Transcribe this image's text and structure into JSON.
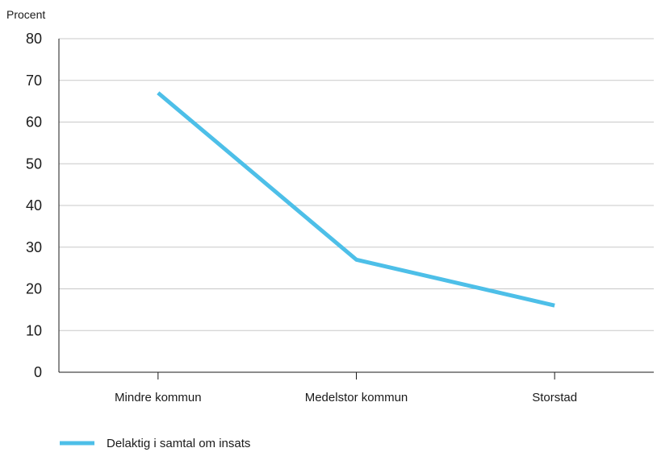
{
  "chart_data": {
    "type": "line",
    "ylabel": "Procent",
    "xlabel": "",
    "ylim": [
      0,
      80
    ],
    "yticks": [
      0,
      10,
      20,
      30,
      40,
      50,
      60,
      70,
      80
    ],
    "categories": [
      "Mindre kommun",
      "Medelstor kommun",
      "Storstad"
    ],
    "series": [
      {
        "name": "Delaktig i samtal om insats",
        "values": [
          67,
          27,
          16
        ],
        "color": "#4dbfe8"
      }
    ],
    "grid": true,
    "legend_position": "bottom-left"
  }
}
